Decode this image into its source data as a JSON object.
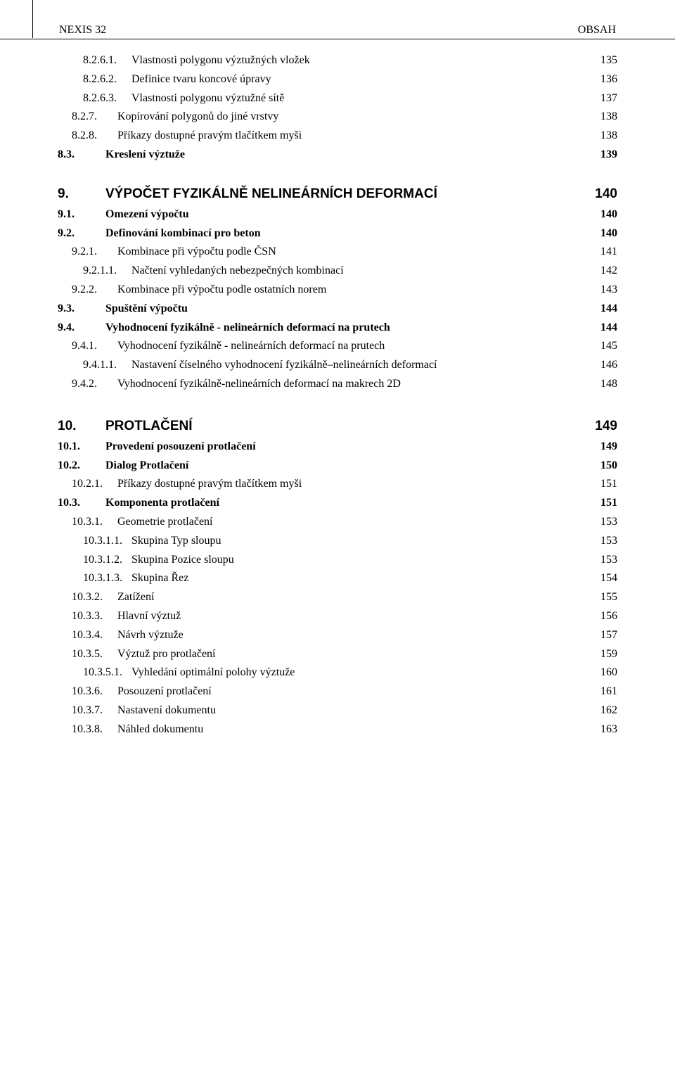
{
  "header": {
    "left": "NEXIS 32",
    "right": "OBSAH"
  },
  "blocks": [
    {
      "type": "row",
      "level": "l2",
      "num": "8.2.6.1.",
      "title": "Vlastnosti polygonu výztužných vložek",
      "page": "135"
    },
    {
      "type": "row",
      "level": "l2",
      "num": "8.2.6.2.",
      "title": "Definice tvaru koncové úpravy",
      "page": "136"
    },
    {
      "type": "row",
      "level": "l2",
      "num": "8.2.6.3.",
      "title": "Vlastnosti polygonu výztužné sítě",
      "page": "137"
    },
    {
      "type": "row",
      "level": "l1",
      "num": "8.2.7.",
      "title": "Kopírování polygonů do jiné vrstvy",
      "page": "138"
    },
    {
      "type": "row",
      "level": "l1",
      "num": "8.2.8.",
      "title": "Příkazy dostupné pravým tlačítkem myši",
      "page": "138"
    },
    {
      "type": "row",
      "level": "l0",
      "num": "8.3.",
      "title": "Kreslení výztuže",
      "page": "139",
      "bold": true
    },
    {
      "type": "section",
      "num": "9.",
      "title": "VÝPOČET FYZIKÁLNĚ NELINEÁRNÍCH DEFORMACÍ",
      "page": "140",
      "first": true
    },
    {
      "type": "row",
      "level": "l0",
      "num": "9.1.",
      "title": "Omezení výpočtu",
      "page": "140",
      "bold": true
    },
    {
      "type": "row",
      "level": "l0",
      "num": "9.2.",
      "title": "Definování kombinací pro beton",
      "page": "140",
      "bold": true
    },
    {
      "type": "row",
      "level": "l1",
      "num": "9.2.1.",
      "title": "Kombinace při výpočtu podle ČSN",
      "page": "141"
    },
    {
      "type": "row",
      "level": "l2",
      "num": "9.2.1.1.",
      "title": "Načtení vyhledaných nebezpečných kombinací",
      "page": "142"
    },
    {
      "type": "row",
      "level": "l1",
      "num": "9.2.2.",
      "title": "Kombinace při výpočtu podle ostatních norem",
      "page": "143"
    },
    {
      "type": "row",
      "level": "l0",
      "num": "9.3.",
      "title": "Spuštění výpočtu",
      "page": "144",
      "bold": true
    },
    {
      "type": "row",
      "level": "l0",
      "num": "9.4.",
      "title": "Vyhodnocení fyzikálně - nelineárních deformací na prutech",
      "page": "144",
      "bold": true
    },
    {
      "type": "row",
      "level": "l1",
      "num": "9.4.1.",
      "title": "Vyhodnocení fyzikálně - nelineárních deformací na prutech",
      "page": "145"
    },
    {
      "type": "row",
      "level": "l2",
      "num": "9.4.1.1.",
      "title": "Nastavení číselného vyhodnocení fyzikálně–nelineárních deformací",
      "page": "146"
    },
    {
      "type": "row",
      "level": "l1",
      "num": "9.4.2.",
      "title": "Vyhodnocení fyzikálně-nelineárních deformací na makrech 2D",
      "page": "148"
    },
    {
      "type": "section",
      "num": "10.",
      "title": "PROTLAČENÍ",
      "page": "149"
    },
    {
      "type": "row",
      "level": "l0",
      "num": "10.1.",
      "title": "Provedení posouzení protlačení",
      "page": "149",
      "bold": true
    },
    {
      "type": "row",
      "level": "l0",
      "num": "10.2.",
      "title": "Dialog Protlačení",
      "page": "150",
      "bold": true
    },
    {
      "type": "row",
      "level": "l1",
      "num": "10.2.1.",
      "title": "Příkazy dostupné pravým tlačítkem myši",
      "page": "151"
    },
    {
      "type": "row",
      "level": "l0",
      "num": "10.3.",
      "title": "Komponenta protlačení",
      "page": "151",
      "bold": true
    },
    {
      "type": "row",
      "level": "l1",
      "num": "10.3.1.",
      "title": "Geometrie protlačení",
      "page": "153"
    },
    {
      "type": "row",
      "level": "l2",
      "num": "10.3.1.1.",
      "title": "Skupina Typ sloupu",
      "page": "153"
    },
    {
      "type": "row",
      "level": "l2",
      "num": "10.3.1.2.",
      "title": "Skupina Pozice sloupu",
      "page": "153"
    },
    {
      "type": "row",
      "level": "l2",
      "num": "10.3.1.3.",
      "title": "Skupina Řez",
      "page": "154"
    },
    {
      "type": "row",
      "level": "l1",
      "num": "10.3.2.",
      "title": "Zatížení",
      "page": "155"
    },
    {
      "type": "row",
      "level": "l1",
      "num": "10.3.3.",
      "title": "Hlavní výztuž",
      "page": "156"
    },
    {
      "type": "row",
      "level": "l1",
      "num": "10.3.4.",
      "title": "Návrh výztuže",
      "page": "157"
    },
    {
      "type": "row",
      "level": "l1",
      "num": "10.3.5.",
      "title": "Výztuž pro protlačení",
      "page": "159"
    },
    {
      "type": "row",
      "level": "l2",
      "num": "10.3.5.1.",
      "title": "Vyhledání optimální polohy výztuže",
      "page": "160"
    },
    {
      "type": "row",
      "level": "l1",
      "num": "10.3.6.",
      "title": "Posouzení protlačení",
      "page": "161"
    },
    {
      "type": "row",
      "level": "l1",
      "num": "10.3.7.",
      "title": "Nastavení dokumentu",
      "page": "162"
    },
    {
      "type": "row",
      "level": "l1",
      "num": "10.3.8.",
      "title": "Náhled dokumentu",
      "page": "163"
    }
  ]
}
